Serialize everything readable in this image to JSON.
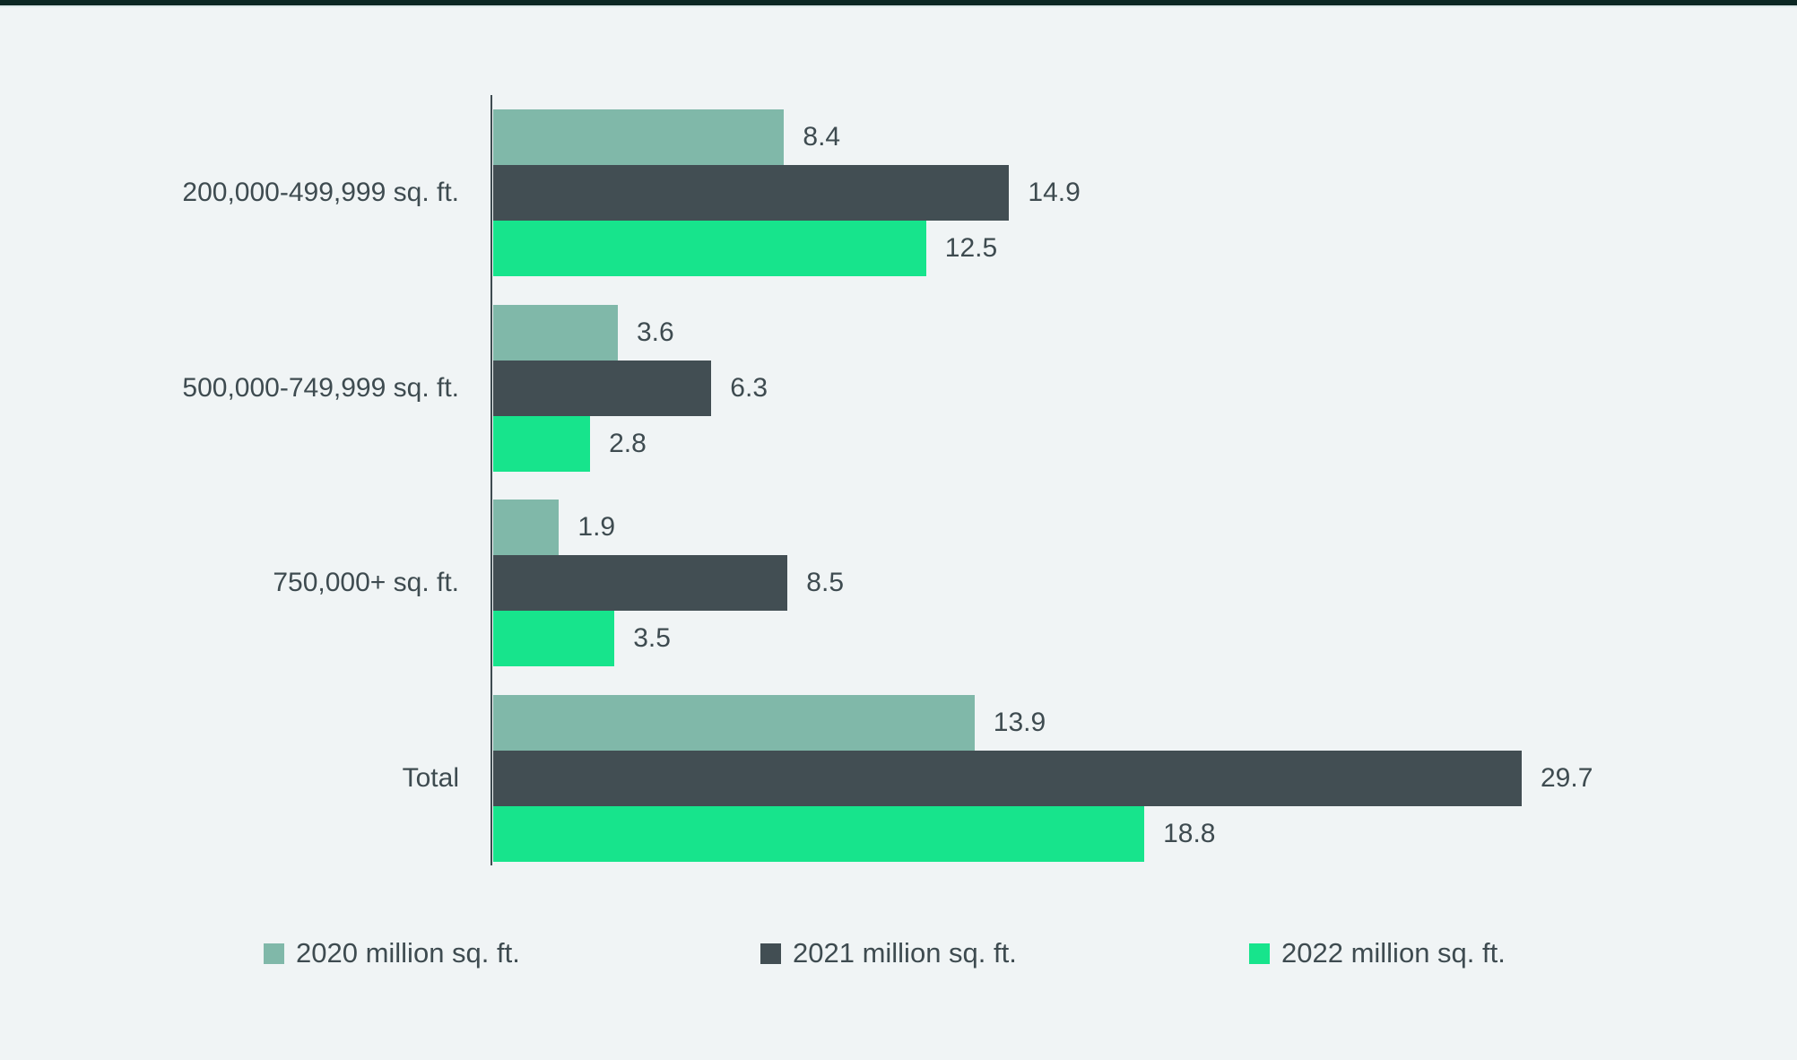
{
  "page": {
    "background": "#f0f4f5",
    "top_accent_color": "#0c2723",
    "text_color": "#3e4b50",
    "axis_color": "#3e4b50"
  },
  "chart_data": {
    "type": "bar",
    "orientation": "horizontal",
    "title": "",
    "xlabel": "",
    "ylabel": "",
    "categories": [
      "200,000-499,999 sq. ft.",
      "500,000-749,999 sq. ft.",
      "750,000+ sq. ft.",
      "Total"
    ],
    "series": [
      {
        "name": "2020 million sq. ft.",
        "color": "#80b8a9",
        "values": [
          8.4,
          3.6,
          1.9,
          13.9
        ]
      },
      {
        "name": "2021 million sq. ft.",
        "color": "#424e53",
        "values": [
          14.9,
          6.3,
          8.5,
          29.7
        ]
      },
      {
        "name": "2022 million sq. ft.",
        "color": "#17e48c",
        "values": [
          12.5,
          2.8,
          3.5,
          18.8
        ]
      }
    ],
    "value_labels": true,
    "xlim": [
      0,
      37.7
    ],
    "grid": false,
    "legend_position": "bottom"
  }
}
